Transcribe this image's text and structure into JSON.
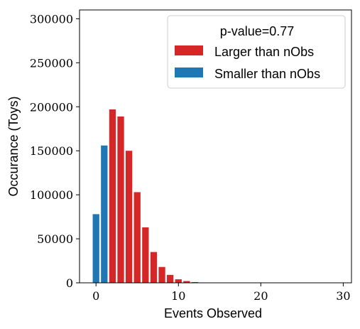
{
  "chart_data": {
    "type": "bar",
    "xlabel": "Events Observed",
    "ylabel": "Occurance (Toys)",
    "xlim": [
      -2,
      31
    ],
    "ylim": [
      0,
      310000
    ],
    "xticks": [
      0,
      10,
      20,
      30
    ],
    "yticks": [
      0,
      50000,
      100000,
      150000,
      200000,
      250000,
      300000
    ],
    "grid": false,
    "legend": {
      "placement": "top-right",
      "title": "p-value=0.77"
    },
    "series": [
      {
        "name": "Larger than nObs",
        "color": "#d62728",
        "x": [
          2,
          3,
          4,
          5,
          6,
          7,
          8,
          9,
          10,
          11,
          12,
          13
        ],
        "values": [
          197000,
          189000,
          150000,
          103000,
          63000,
          35000,
          18000,
          9000,
          4000,
          2000,
          800,
          300
        ]
      },
      {
        "name": "Smaller than nObs",
        "color": "#1f77b4",
        "x": [
          0,
          1
        ],
        "values": [
          78000,
          156000
        ]
      }
    ]
  }
}
